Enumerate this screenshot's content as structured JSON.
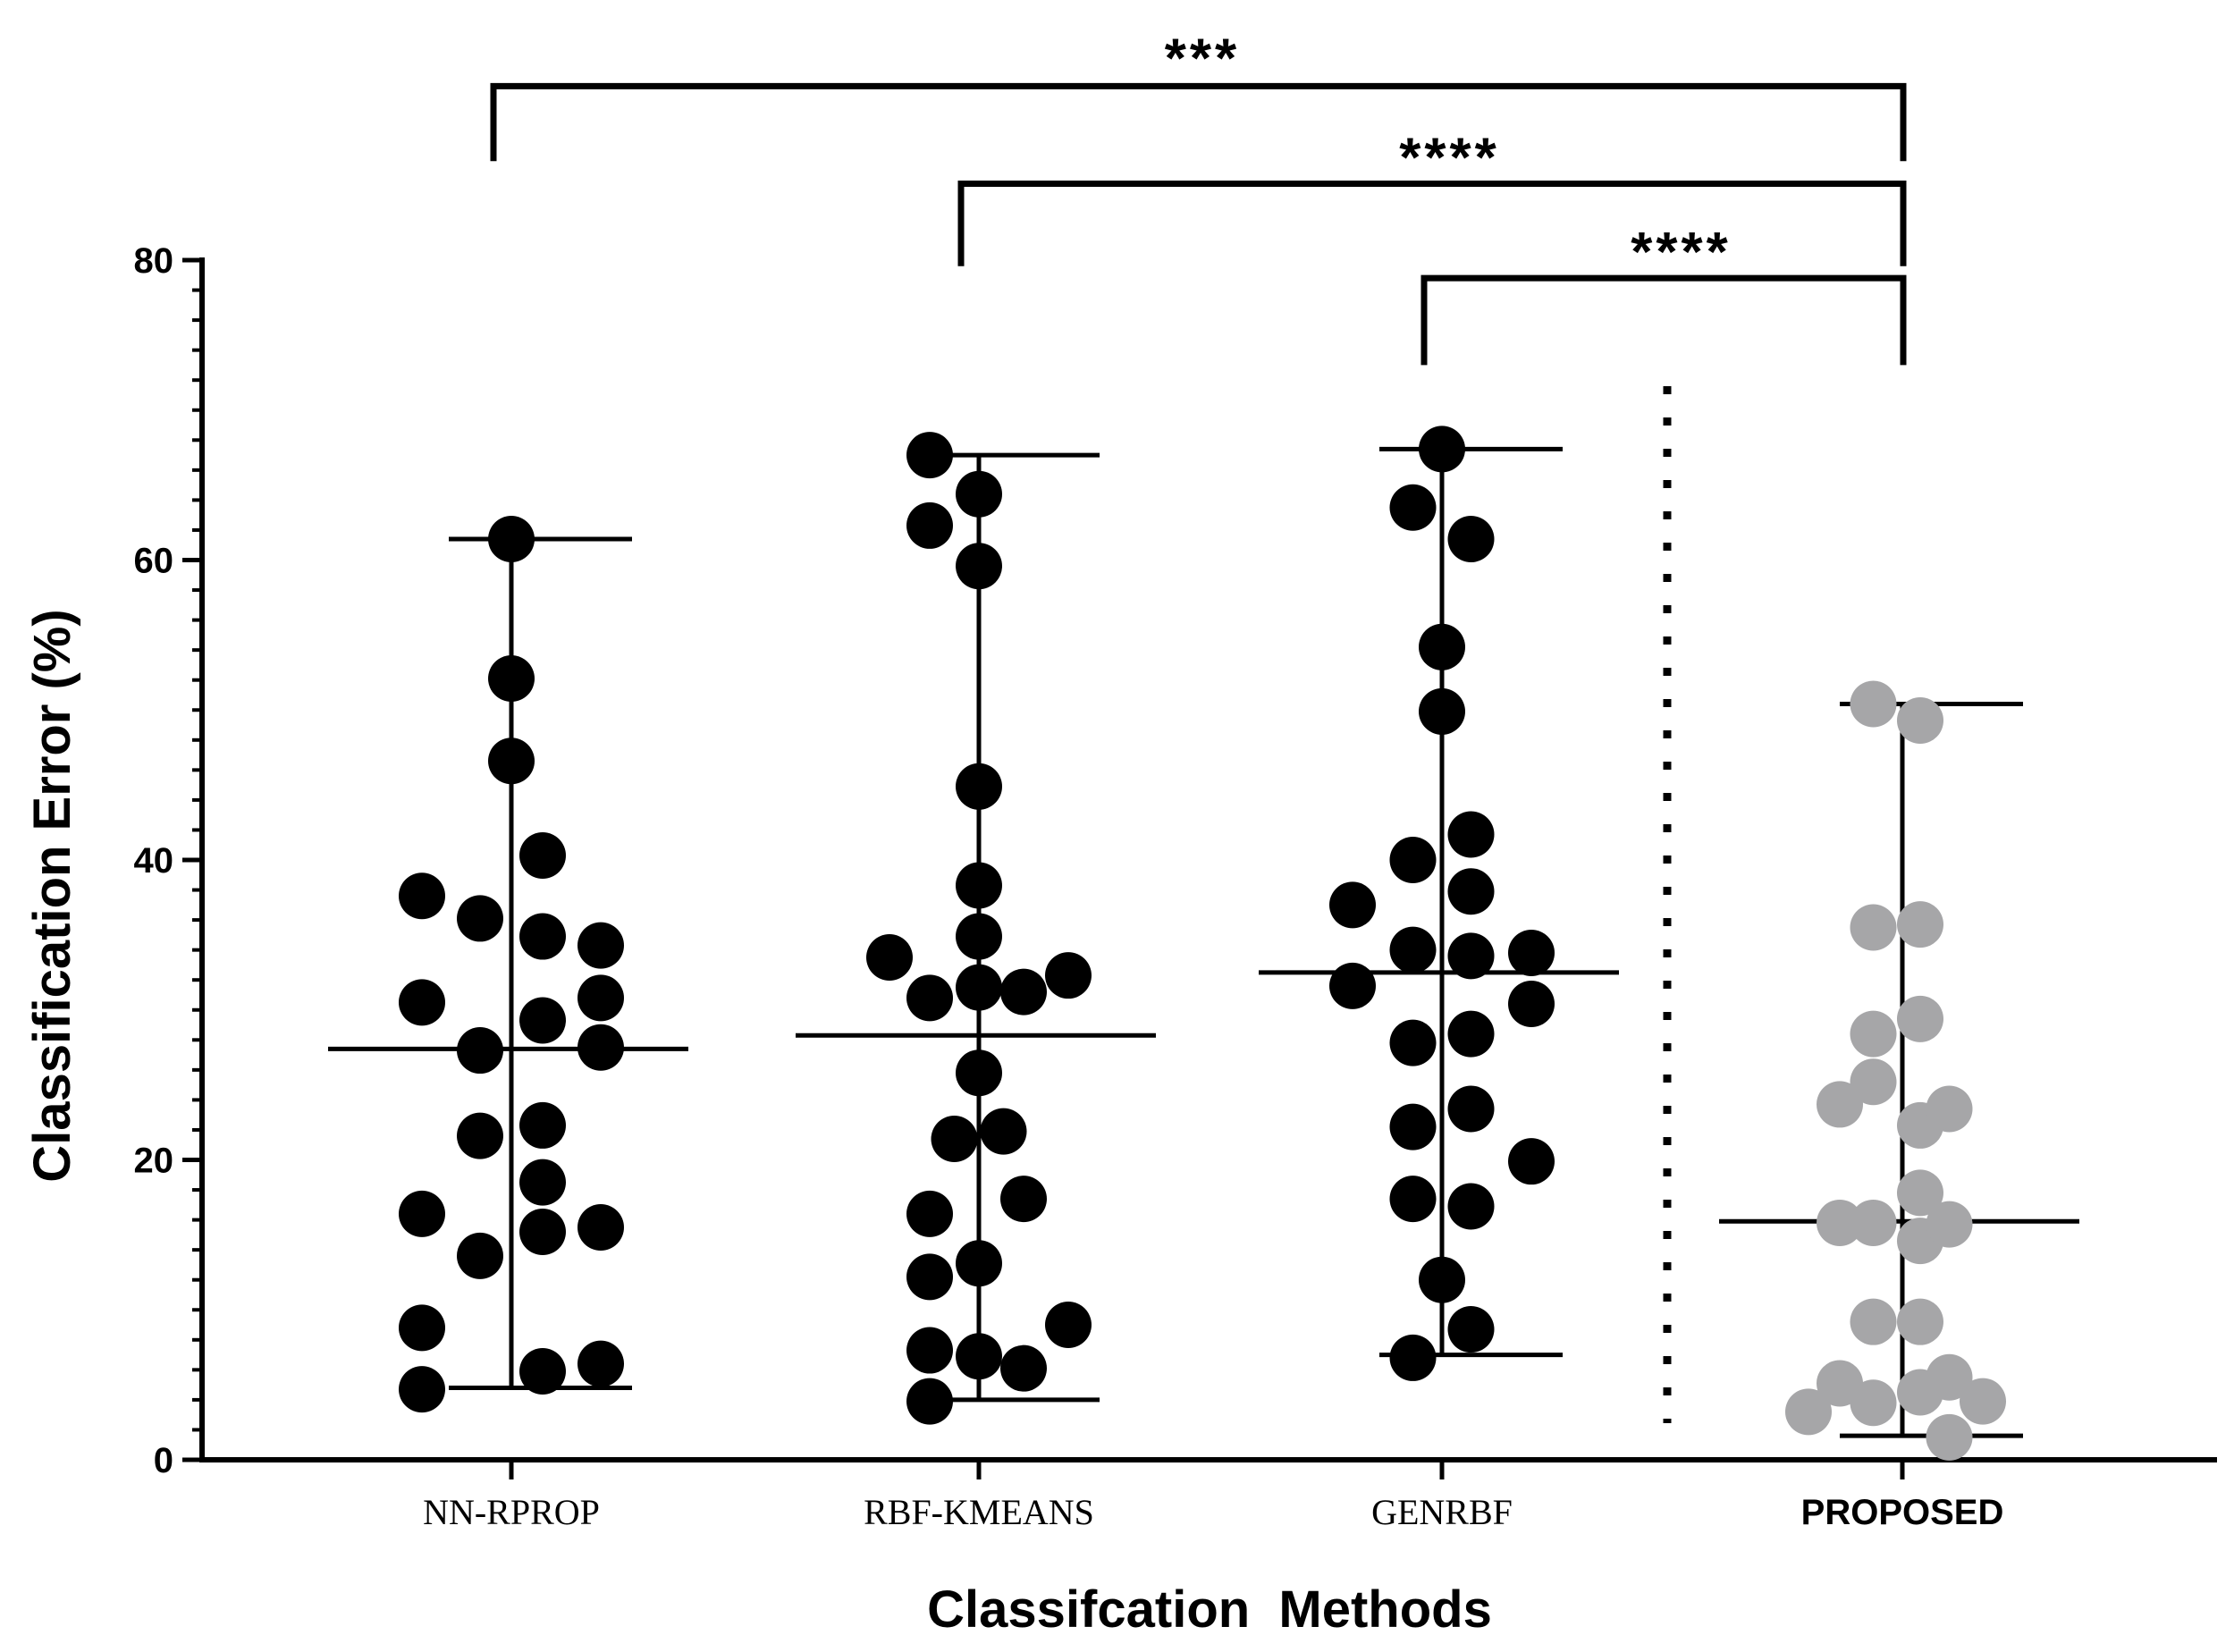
{
  "chart_data": {
    "type": "scatter",
    "subtype": "dot-plot-with-median-and-range",
    "xlabel": "Classifcation  Methods",
    "ylabel": "Classification Error (%)",
    "ylim": [
      0,
      80
    ],
    "yticks": [
      0,
      20,
      40,
      60,
      80
    ],
    "categories": [
      "NN-RPROP",
      "RBF-KMEANS",
      "GENRBF",
      "PROPOSED"
    ],
    "series": [
      {
        "name": "NN-RPROP",
        "color": "#000000",
        "median": 27.4,
        "min": 4.8,
        "max": 61.4,
        "points": [
          {
            "offset": -2,
            "value": 37.6
          },
          {
            "offset": -2,
            "value": 30.5
          },
          {
            "offset": -2,
            "value": 16.4
          },
          {
            "offset": -2,
            "value": 8.8
          },
          {
            "offset": -2,
            "value": 4.7
          },
          {
            "offset": -0.7,
            "value": 36.1
          },
          {
            "offset": -0.7,
            "value": 27.3
          },
          {
            "offset": -0.7,
            "value": 21.6
          },
          {
            "offset": -0.7,
            "value": 13.6
          },
          {
            "offset": 0,
            "value": 61.4
          },
          {
            "offset": 0,
            "value": 52.1
          },
          {
            "offset": 0,
            "value": 46.6
          },
          {
            "offset": 0.7,
            "value": 40.3
          },
          {
            "offset": 0.7,
            "value": 34.9
          },
          {
            "offset": 0.7,
            "value": 29.3
          },
          {
            "offset": 0.7,
            "value": 22.3
          },
          {
            "offset": 0.7,
            "value": 18.5
          },
          {
            "offset": 0.7,
            "value": 15.2
          },
          {
            "offset": 0.7,
            "value": 5.9
          },
          {
            "offset": 2,
            "value": 34.3
          },
          {
            "offset": 2,
            "value": 30.8
          },
          {
            "offset": 2,
            "value": 27.5
          },
          {
            "offset": 2,
            "value": 15.5
          },
          {
            "offset": 2,
            "value": 6.4
          }
        ]
      },
      {
        "name": "RBF-KMEANS",
        "color": "#000000",
        "median": 28.3,
        "min": 4.0,
        "max": 67.0,
        "points": [
          {
            "offset": -2,
            "value": 33.5
          },
          {
            "offset": -1.1,
            "value": 67.0
          },
          {
            "offset": -1.1,
            "value": 62.3
          },
          {
            "offset": -1.1,
            "value": 30.8
          },
          {
            "offset": -1.1,
            "value": 16.4
          },
          {
            "offset": -1.1,
            "value": 12.2
          },
          {
            "offset": -1.1,
            "value": 7.3
          },
          {
            "offset": -1.1,
            "value": 3.9
          },
          {
            "offset": -0.55,
            "value": 21.4
          },
          {
            "offset": 0,
            "value": 64.4
          },
          {
            "offset": 0,
            "value": 59.6
          },
          {
            "offset": 0,
            "value": 44.9
          },
          {
            "offset": 0,
            "value": 38.3
          },
          {
            "offset": 0,
            "value": 34.9
          },
          {
            "offset": 0,
            "value": 31.5
          },
          {
            "offset": 0,
            "value": 25.8
          },
          {
            "offset": 0,
            "value": 13.1
          },
          {
            "offset": 0,
            "value": 6.9
          },
          {
            "offset": 0.55,
            "value": 21.9
          },
          {
            "offset": 1.0,
            "value": 31.2
          },
          {
            "offset": 1.0,
            "value": 17.4
          },
          {
            "offset": 1.0,
            "value": 6.1
          },
          {
            "offset": 2,
            "value": 32.3
          },
          {
            "offset": 2,
            "value": 9.0
          }
        ]
      },
      {
        "name": "GENRBF",
        "color": "#000000",
        "median": 32.5,
        "min": 7.0,
        "max": 67.4,
        "points": [
          {
            "offset": -2,
            "value": 37.0
          },
          {
            "offset": -2,
            "value": 31.6
          },
          {
            "offset": -0.65,
            "value": 63.5
          },
          {
            "offset": -0.65,
            "value": 40.0
          },
          {
            "offset": -0.65,
            "value": 34.0
          },
          {
            "offset": -0.65,
            "value": 27.8
          },
          {
            "offset": -0.65,
            "value": 22.2
          },
          {
            "offset": -0.65,
            "value": 17.4
          },
          {
            "offset": -0.65,
            "value": 6.8
          },
          {
            "offset": 0,
            "value": 67.4
          },
          {
            "offset": 0,
            "value": 54.2
          },
          {
            "offset": 0,
            "value": 49.9
          },
          {
            "offset": 0,
            "value": 12.0
          },
          {
            "offset": 0.65,
            "value": 61.4
          },
          {
            "offset": 0.65,
            "value": 41.7
          },
          {
            "offset": 0.65,
            "value": 37.9
          },
          {
            "offset": 0.65,
            "value": 33.6
          },
          {
            "offset": 0.65,
            "value": 28.4
          },
          {
            "offset": 0.65,
            "value": 23.4
          },
          {
            "offset": 0.65,
            "value": 16.9
          },
          {
            "offset": 0.65,
            "value": 8.7
          },
          {
            "offset": 2,
            "value": 33.8
          },
          {
            "offset": 2,
            "value": 30.4
          },
          {
            "offset": 2,
            "value": 19.9
          }
        ]
      },
      {
        "name": "PROPOSED",
        "color": "#a6a6a8",
        "median": 15.9,
        "min": 1.6,
        "max": 50.4,
        "points": [
          {
            "offset": -2.1,
            "value": 3.2
          },
          {
            "offset": -1.4,
            "value": 23.7
          },
          {
            "offset": -1.4,
            "value": 15.8
          },
          {
            "offset": -1.4,
            "value": 5.1
          },
          {
            "offset": -0.65,
            "value": 50.4
          },
          {
            "offset": -0.65,
            "value": 35.5
          },
          {
            "offset": -0.65,
            "value": 28.4
          },
          {
            "offset": -0.65,
            "value": 25.2
          },
          {
            "offset": -0.65,
            "value": 15.8
          },
          {
            "offset": -0.65,
            "value": 9.2
          },
          {
            "offset": -0.65,
            "value": 3.8
          },
          {
            "offset": 0.4,
            "value": 49.3
          },
          {
            "offset": 0.4,
            "value": 35.7
          },
          {
            "offset": 0.4,
            "value": 29.4
          },
          {
            "offset": 0.4,
            "value": 22.3
          },
          {
            "offset": 0.4,
            "value": 17.8
          },
          {
            "offset": 0.4,
            "value": 14.6
          },
          {
            "offset": 0.4,
            "value": 9.2
          },
          {
            "offset": 0.4,
            "value": 4.5
          },
          {
            "offset": 1.05,
            "value": 23.4
          },
          {
            "offset": 1.05,
            "value": 15.7
          },
          {
            "offset": 1.05,
            "value": 5.5
          },
          {
            "offset": 1.05,
            "value": 1.5
          },
          {
            "offset": 1.8,
            "value": 3.9
          }
        ]
      }
    ],
    "separator": {
      "style": "dotted",
      "between": [
        "GENRBF",
        "PROPOSED"
      ]
    },
    "significance": [
      {
        "from": "NN-RPROP",
        "to": "PROPOSED",
        "label": "***",
        "bracket_top": 91.6,
        "left_foot": 86.6,
        "right_foot": 86.6
      },
      {
        "from": "RBF-KMEANS",
        "to": "PROPOSED",
        "label": "****",
        "bracket_top": 85.1,
        "left_foot": 79.6,
        "right_foot": 79.6
      },
      {
        "from": "GENRBF",
        "to": "PROPOSED",
        "label": "****",
        "bracket_top": 78.8,
        "left_foot": 73.0,
        "right_foot": 73.0
      }
    ]
  }
}
